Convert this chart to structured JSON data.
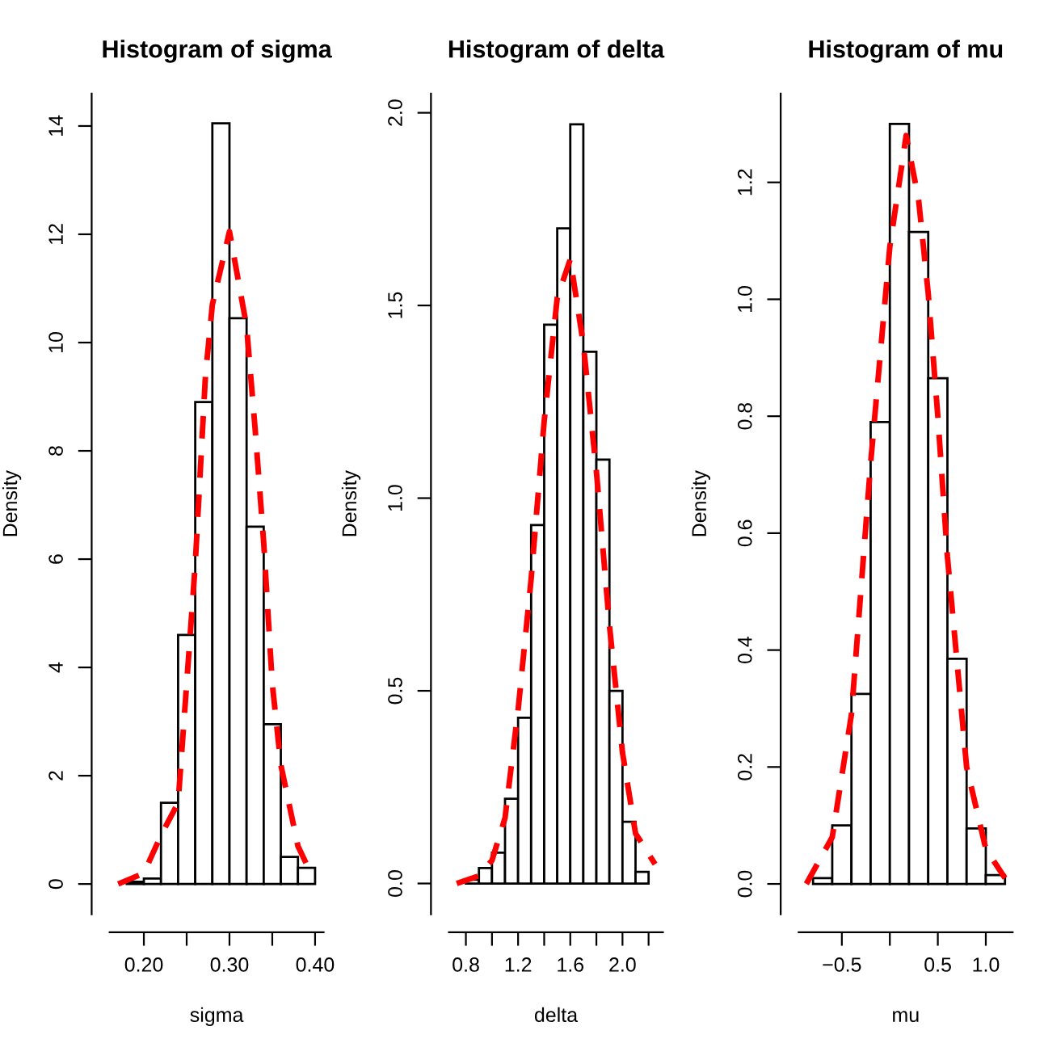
{
  "chart_data": [
    {
      "type": "histogram",
      "title": "Histogram of sigma",
      "xlabel": "sigma",
      "ylabel": "Density",
      "series": [
        {
          "color": "#ffffff",
          "bins": [
            0.18,
            0.2,
            0.22,
            0.24,
            0.26,
            0.28,
            0.3,
            0.32,
            0.34,
            0.36,
            0.38,
            0.4
          ],
          "values": [
            0.04,
            0.1,
            1.5,
            4.6,
            8.9,
            14.05,
            10.45,
            6.6,
            2.95,
            0.5,
            0.3
          ]
        },
        {
          "type": "line",
          "color": "#ff0000",
          "line_style": "dashed",
          "x": [
            0.17,
            0.2,
            0.22,
            0.24,
            0.25,
            0.26,
            0.272,
            0.28,
            0.3,
            0.32,
            0.33,
            0.34,
            0.35,
            0.36,
            0.38,
            0.395
          ],
          "values": [
            0,
            0.2,
            0.9,
            1.5,
            3.7,
            5.9,
            9.4,
            10.7,
            12.05,
            10.3,
            8.4,
            6.3,
            3.7,
            2.2,
            0.7,
            0.2
          ]
        }
      ],
      "xlim": [
        0.16,
        0.41
      ],
      "ylim": [
        -0.56,
        14.6
      ],
      "xticks": [
        {
          "value": 0.2,
          "label": "0.20"
        },
        {
          "value": 0.25,
          "label": null
        },
        {
          "value": 0.3,
          "label": "0.30"
        },
        {
          "value": 0.35,
          "label": null
        },
        {
          "value": 0.4,
          "label": "0.40"
        }
      ],
      "yticks": [
        0,
        2,
        4,
        6,
        8,
        10,
        12,
        14
      ],
      "grid": false,
      "legend": false
    },
    {
      "type": "histogram",
      "title": "Histogram of delta",
      "xlabel": "delta",
      "ylabel": "Density",
      "series": [
        {
          "color": "#ffffff",
          "bins": [
            0.8,
            0.9,
            1.0,
            1.1,
            1.2,
            1.3,
            1.4,
            1.5,
            1.6,
            1.7,
            1.8,
            1.9,
            2.0,
            2.1,
            2.2
          ],
          "values": [
            0.01,
            0.04,
            0.08,
            0.22,
            0.43,
            0.93,
            1.45,
            1.7,
            1.97,
            1.38,
            1.1,
            0.5,
            0.16,
            0.03
          ]
        },
        {
          "type": "line",
          "color": "#ff0000",
          "line_style": "dashed",
          "x": [
            0.73,
            0.9,
            1.0,
            1.1,
            1.2,
            1.3,
            1.4,
            1.5,
            1.6,
            1.7,
            1.8,
            1.9,
            2.0,
            2.1,
            2.25
          ],
          "values": [
            0,
            0.02,
            0.06,
            0.17,
            0.45,
            0.79,
            1.2,
            1.52,
            1.62,
            1.4,
            1.07,
            0.67,
            0.34,
            0.13,
            0.05
          ]
        }
      ],
      "xlim": [
        0.67,
        2.31
      ],
      "ylim": [
        -0.08,
        2.05
      ],
      "xticks": [
        {
          "value": 0.8,
          "label": "0.8"
        },
        {
          "value": 1.0,
          "label": null
        },
        {
          "value": 1.2,
          "label": "1.2"
        },
        {
          "value": 1.4,
          "label": null
        },
        {
          "value": 1.6,
          "label": "1.6"
        },
        {
          "value": 1.8,
          "label": null
        },
        {
          "value": 2.0,
          "label": "2.0"
        },
        {
          "value": 2.2,
          "label": null
        }
      ],
      "yticks": [
        {
          "value": 0,
          "label": "0.0"
        },
        {
          "value": 0.5,
          "label": "0.5"
        },
        {
          "value": 1.0,
          "label": "1.0"
        },
        {
          "value": 1.5,
          "label": "1.5"
        },
        {
          "value": 2.0,
          "label": "2.0"
        }
      ],
      "grid": false,
      "legend": false
    },
    {
      "type": "histogram",
      "title": "Histogram of mu",
      "xlabel": "mu",
      "ylabel": "Density",
      "series": [
        {
          "color": "#ffffff",
          "bins": [
            -0.8,
            -0.6,
            -0.4,
            -0.2,
            0.0,
            0.2,
            0.4,
            0.6,
            0.8,
            1.0,
            1.2
          ],
          "values": [
            0.01,
            0.1,
            0.325,
            0.79,
            1.3,
            1.115,
            0.865,
            0.385,
            0.095,
            0.015
          ]
        },
        {
          "type": "line",
          "color": "#ff0000",
          "line_style": "dashed",
          "x": [
            -0.87,
            -0.6,
            -0.4,
            -0.2,
            0.0,
            0.17,
            0.3,
            0.4,
            0.5,
            0.6,
            0.8,
            1.0,
            1.2
          ],
          "values": [
            0,
            0.08,
            0.29,
            0.72,
            1.09,
            1.28,
            1.17,
            1.01,
            0.8,
            0.56,
            0.2,
            0.06,
            0.01
          ]
        }
      ],
      "xlim": [
        -0.95,
        1.28
      ],
      "ylim": [
        -0.052,
        1.352
      ],
      "xticks": [
        {
          "value": -0.5,
          "label": "−0.5"
        },
        {
          "value": 0.0,
          "label": null
        },
        {
          "value": 0.5,
          "label": "0.5"
        },
        {
          "value": 1.0,
          "label": "1.0"
        }
      ],
      "yticks": [
        {
          "value": 0,
          "label": "0.0"
        },
        {
          "value": 0.2,
          "label": "0.2"
        },
        {
          "value": 0.4,
          "label": "0.4"
        },
        {
          "value": 0.6,
          "label": "0.6"
        },
        {
          "value": 0.8,
          "label": "0.8"
        },
        {
          "value": 1.0,
          "label": "1.0"
        },
        {
          "value": 1.2,
          "label": "1.2"
        }
      ],
      "grid": false,
      "legend": false
    }
  ]
}
